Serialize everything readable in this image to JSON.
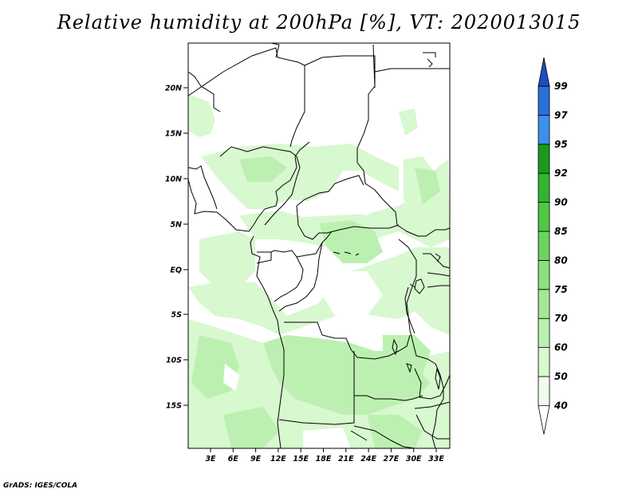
{
  "title": "Relative humidity at 200hPa [%], VT: 2020013015",
  "credit": "GrADS: IGES/COLA",
  "lat_ticks": [
    "20N",
    "15N",
    "10N",
    "5N",
    "EQ",
    "5S",
    "10S",
    "15S"
  ],
  "lon_ticks": [
    "3E",
    "6E",
    "9E",
    "12E",
    "15E",
    "18E",
    "21E",
    "24E",
    "27E",
    "30E",
    "33E"
  ],
  "colorbar": {
    "levels": [
      "40",
      "50",
      "60",
      "70",
      "75",
      "80",
      "85",
      "90",
      "92",
      "95",
      "97",
      "99"
    ],
    "colors": [
      "#f0fcee",
      "#d8f8d0",
      "#bcf0b0",
      "#a4e896",
      "#8ce07e",
      "#6cd45e",
      "#50c846",
      "#32b430",
      "#1a9a1a",
      "#3c90e8",
      "#2a70d8",
      "#1c4ec0"
    ]
  },
  "field_colors": {
    "light": "#d8f8d0",
    "mid": "#bcf0b0"
  }
}
